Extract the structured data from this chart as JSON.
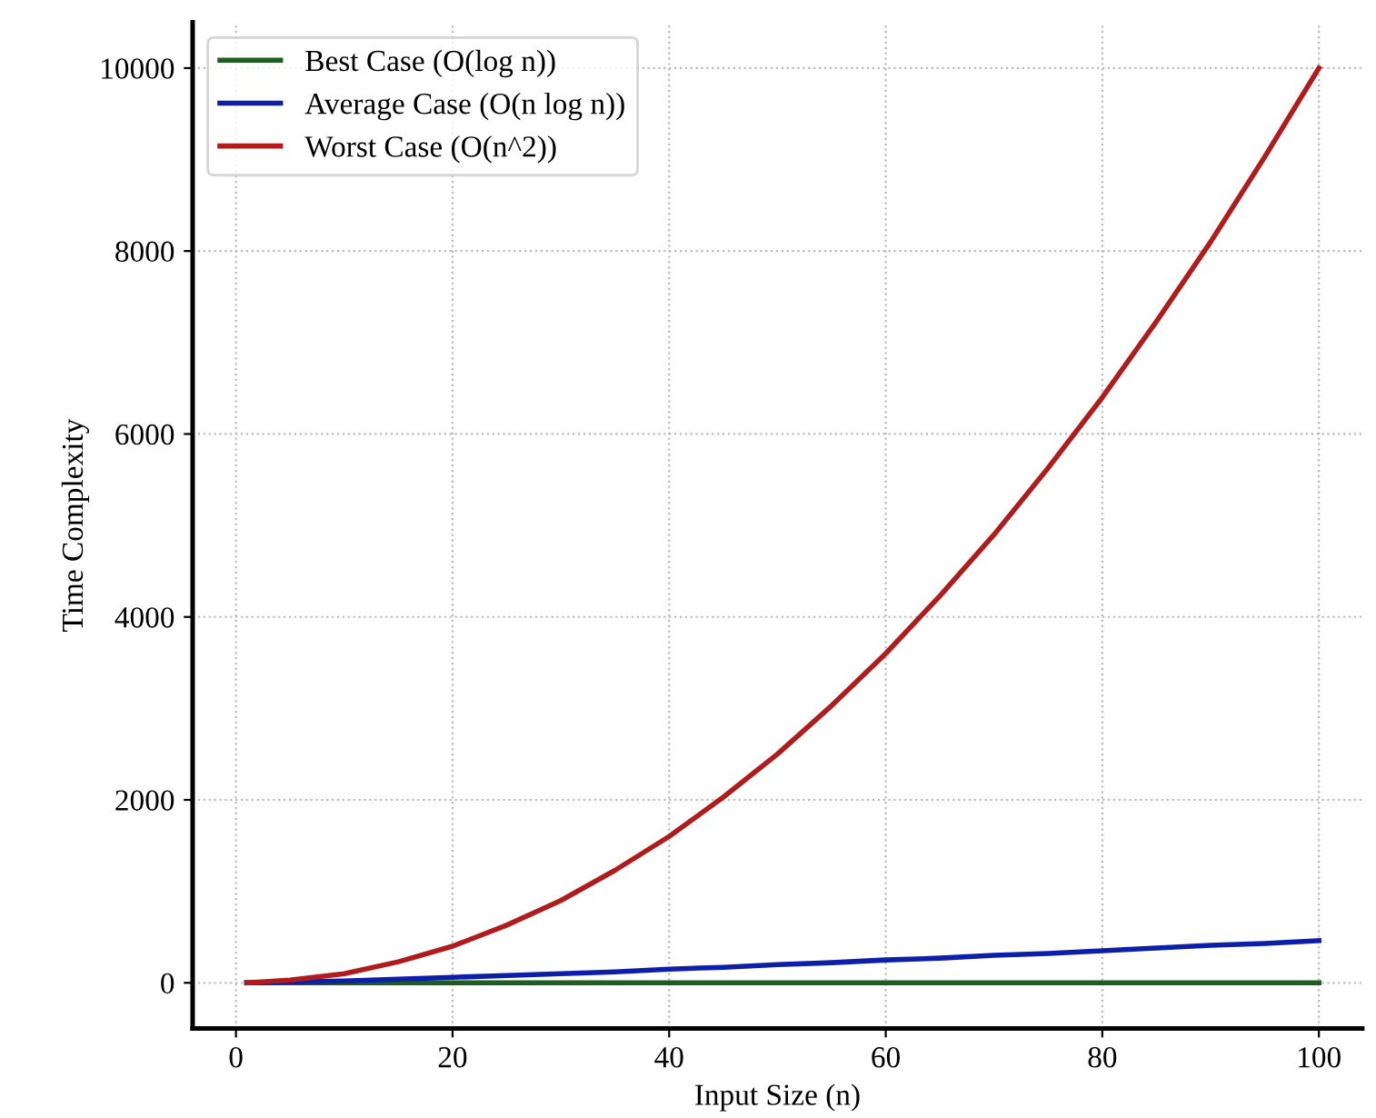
{
  "chart_data": {
    "type": "line",
    "xlabel": "Input Size (n)",
    "ylabel": "Time Complexity",
    "x": [
      1,
      5,
      10,
      15,
      20,
      25,
      30,
      35,
      40,
      45,
      50,
      55,
      60,
      65,
      70,
      75,
      80,
      85,
      90,
      95,
      100
    ],
    "series": [
      {
        "name": "Best Case (O(log n))",
        "color": "#1b5e20",
        "values": [
          0,
          0,
          0,
          0,
          0,
          0,
          0,
          0,
          0,
          0,
          0,
          0,
          0,
          0,
          0,
          0,
          0,
          0,
          0,
          0,
          0
        ]
      },
      {
        "name": "Average Case (O(n log n))",
        "color": "#0d1fa8",
        "values": [
          0,
          10,
          20,
          40,
          60,
          80,
          100,
          120,
          150,
          170,
          200,
          220,
          250,
          270,
          300,
          320,
          350,
          380,
          410,
          430,
          460
        ]
      },
      {
        "name": "Worst Case (O(n^2))",
        "color": "#b01c1c",
        "values": [
          0,
          30,
          100,
          230,
          400,
          630,
          900,
          1230,
          1600,
          2030,
          2500,
          3030,
          3600,
          4230,
          4900,
          5630,
          6400,
          7230,
          8100,
          9030,
          10000
        ]
      }
    ],
    "xlim": [
      -4,
      104
    ],
    "ylim": [
      -500,
      10500
    ],
    "xticks": [
      0,
      20,
      40,
      60,
      80,
      100
    ],
    "yticks": [
      0,
      2000,
      4000,
      6000,
      8000,
      10000
    ],
    "grid": true,
    "legend": "top left",
    "line_style": "solid",
    "marker": "none"
  }
}
